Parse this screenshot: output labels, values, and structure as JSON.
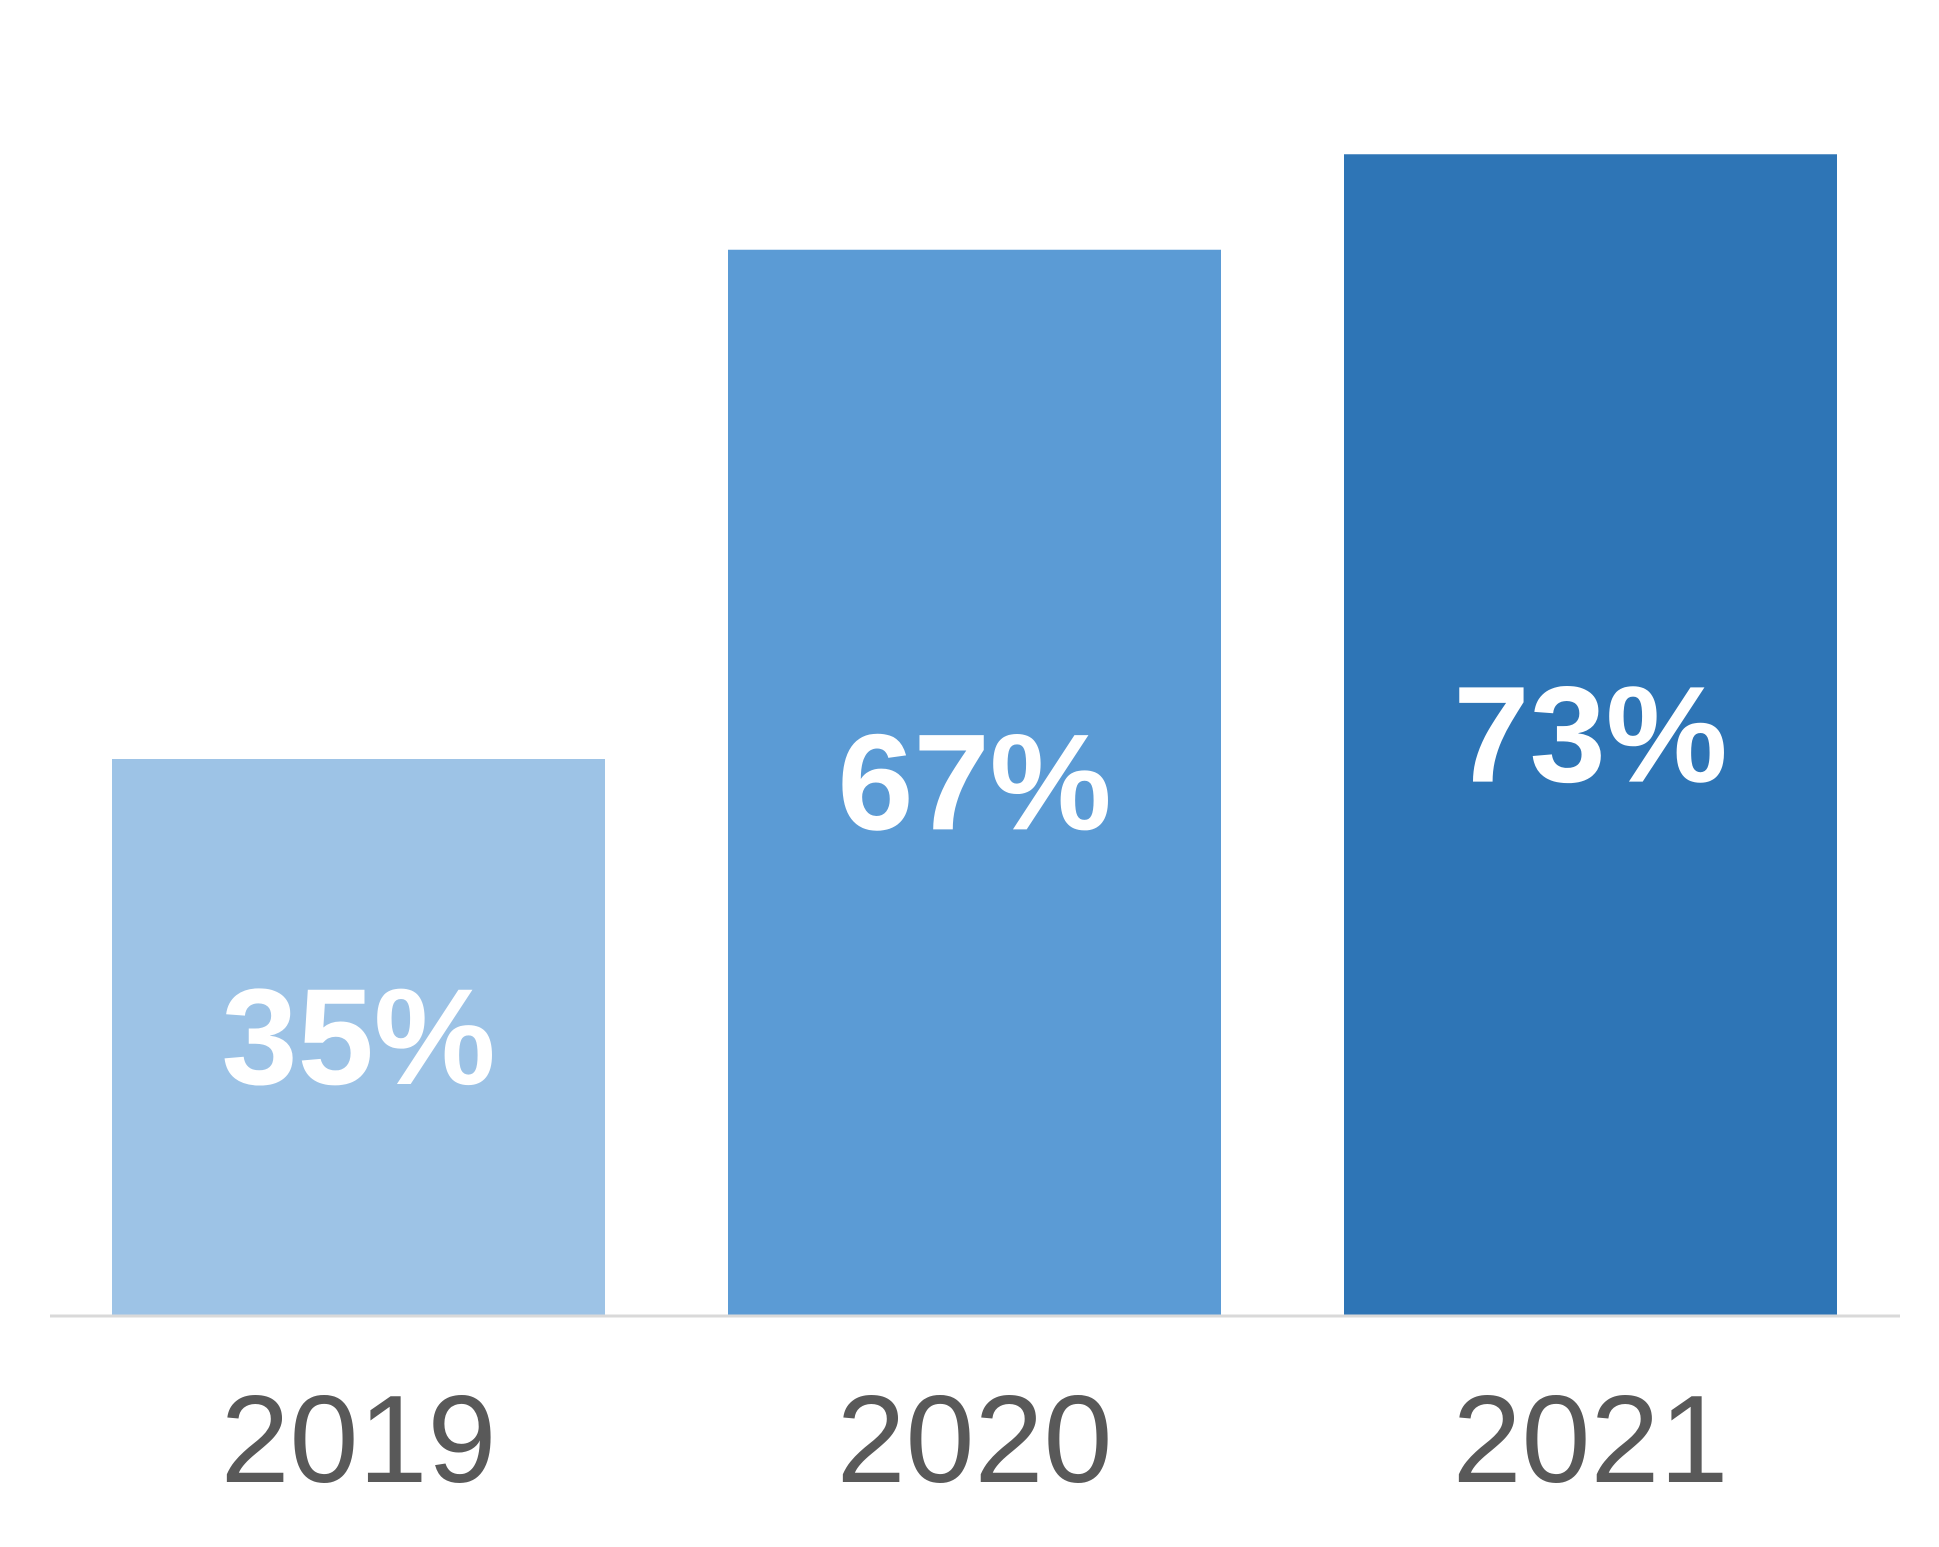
{
  "chart_data": {
    "type": "bar",
    "title": "",
    "xlabel": "",
    "ylabel": "",
    "categories": [
      "2019",
      "2020",
      "2021"
    ],
    "values": [
      35,
      67,
      73
    ],
    "value_labels": [
      "35%",
      "67%",
      "73%"
    ],
    "unit": "%",
    "ylim": [
      0,
      80
    ],
    "grid": false,
    "legend": "none",
    "bar_colors": [
      "#9dc3e6",
      "#5b9bd5",
      "#2e75b6"
    ],
    "label_color": "#ffffff",
    "tick_color": "#595959",
    "axis_color": "#d9d9d9"
  }
}
